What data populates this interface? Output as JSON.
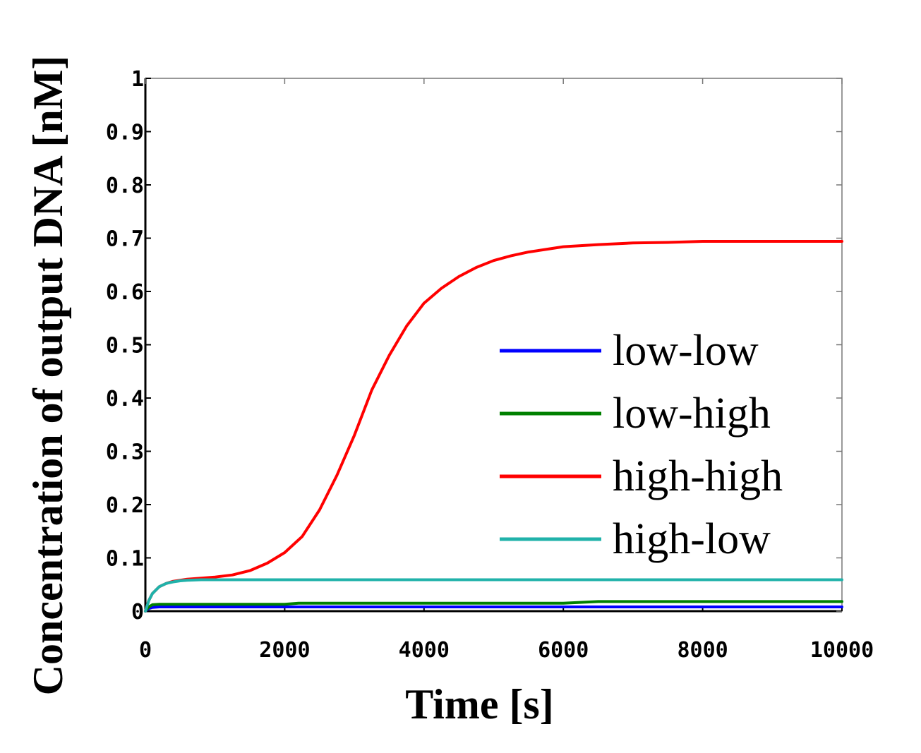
{
  "chart_data": {
    "type": "line",
    "title": "",
    "xlabel": "Time [s]",
    "ylabel": "Concentration of output DNA [nM]",
    "xlim": [
      0,
      10000
    ],
    "ylim": [
      0,
      1
    ],
    "xticks": [
      0,
      2000,
      4000,
      6000,
      8000,
      10000
    ],
    "xtick_labels": [
      "0",
      "2000",
      "4000",
      "6000",
      "8000",
      "10000"
    ],
    "yticks": [
      0,
      0.1,
      0.2,
      0.3,
      0.4,
      0.5,
      0.6,
      0.7,
      0.8,
      0.9,
      1
    ],
    "ytick_labels": [
      "0",
      "0.1",
      "0.2",
      "0.3",
      "0.4",
      "0.5",
      "0.6",
      "0.7",
      "0.8",
      "0.9",
      "1"
    ],
    "grid": false,
    "legend_position": "right",
    "series": [
      {
        "name": "low-low",
        "color": "#0000ff",
        "x": [
          0,
          50,
          100,
          200,
          500,
          1000,
          2000,
          4000,
          6000,
          8000,
          10000
        ],
        "y": [
          0,
          0.005,
          0.007,
          0.008,
          0.008,
          0.008,
          0.008,
          0.008,
          0.008,
          0.008,
          0.008
        ]
      },
      {
        "name": "low-high",
        "color": "#008000",
        "x": [
          0,
          50,
          100,
          200,
          500,
          1000,
          2000,
          2200,
          4000,
          6000,
          6500,
          8000,
          10000
        ],
        "y": [
          0,
          0.008,
          0.012,
          0.013,
          0.013,
          0.013,
          0.013,
          0.015,
          0.015,
          0.015,
          0.018,
          0.018,
          0.018
        ]
      },
      {
        "name": "high-high",
        "color": "#ff0000",
        "x": [
          0,
          50,
          100,
          200,
          300,
          400,
          500,
          600,
          800,
          1000,
          1250,
          1500,
          1750,
          2000,
          2250,
          2500,
          2750,
          3000,
          3250,
          3500,
          3750,
          4000,
          4250,
          4500,
          4750,
          5000,
          5250,
          5500,
          5750,
          6000,
          6500,
          7000,
          7500,
          8000,
          9000,
          10000
        ],
        "y": [
          0,
          0.02,
          0.033,
          0.046,
          0.052,
          0.056,
          0.058,
          0.06,
          0.062,
          0.064,
          0.068,
          0.076,
          0.09,
          0.11,
          0.14,
          0.19,
          0.255,
          0.33,
          0.415,
          0.48,
          0.535,
          0.578,
          0.606,
          0.628,
          0.645,
          0.658,
          0.667,
          0.674,
          0.679,
          0.684,
          0.688,
          0.691,
          0.692,
          0.694,
          0.694,
          0.694
        ]
      },
      {
        "name": "high-low",
        "color": "#20b2aa",
        "x": [
          0,
          50,
          100,
          200,
          300,
          400,
          500,
          600,
          800,
          1000,
          2000,
          4000,
          6000,
          8000,
          10000
        ],
        "y": [
          0,
          0.02,
          0.033,
          0.046,
          0.052,
          0.055,
          0.057,
          0.058,
          0.059,
          0.059,
          0.059,
          0.059,
          0.059,
          0.059,
          0.059
        ]
      }
    ]
  }
}
